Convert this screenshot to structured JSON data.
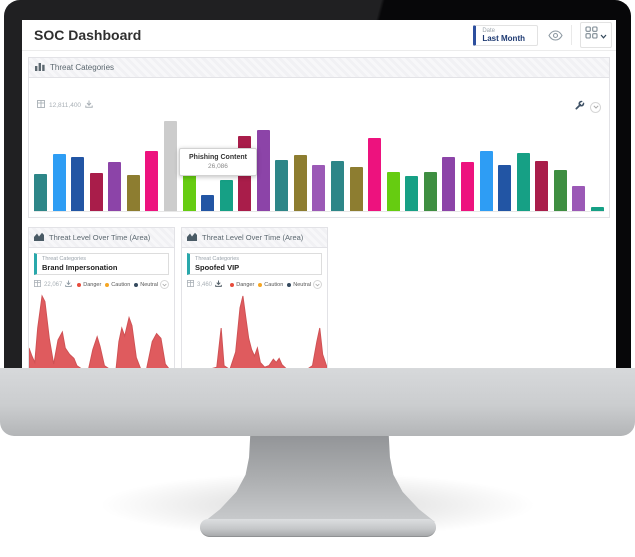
{
  "app": {
    "title": "SOC Dashboard"
  },
  "toolbar": {
    "date_label": "Date",
    "date_value": "Last Month"
  },
  "widgets": {
    "threat_categories": {
      "title": "Threat Categories",
      "stat_total": "12,811,400",
      "tooltip_label": "Phishing Content",
      "tooltip_value": "26,086"
    },
    "area_left": {
      "title": "Threat Level Over Time (Area)",
      "filter_label": "Threat Categories",
      "filter_value": "Brand Impersonation",
      "stat_total": "22,067"
    },
    "area_right": {
      "title": "Threat Level Over Time (Area)",
      "filter_label": "Threat Categories",
      "filter_value": "Spoofed VIP",
      "stat_total": "3,460"
    }
  },
  "legend": {
    "items": [
      {
        "label": "Danger",
        "color": "#e74c3c"
      },
      {
        "label": "Caution",
        "color": "#f5a623"
      },
      {
        "label": "Neutral",
        "color": "#34495e"
      }
    ]
  },
  "colors": {
    "accent_blue": "#2d4f9e",
    "accent_teal": "#29a8ab",
    "area_fill": "#df5b5e",
    "bar_highlight": "#cccccc"
  },
  "chart_data": [
    {
      "type": "bar",
      "title": "Threat Categories",
      "values": [
        10730,
        16530,
        15660,
        11020,
        14210,
        10440,
        17400,
        26086,
        16820,
        4640,
        8990,
        21750,
        23490,
        14790,
        16240,
        13340,
        14500,
        12760,
        21170,
        11310,
        10150,
        11310,
        15660,
        14210,
        17400,
        13340,
        16820,
        14500,
        11890,
        7250,
        1160
      ],
      "colors": [
        "#2d8688",
        "#2e9df4",
        "#2255a4",
        "#a91d4a",
        "#8c44a8",
        "#8d7d30",
        "#ed127e",
        "#cccccc",
        "#66cc11",
        "#2255a4",
        "#16a085",
        "#a91d4a",
        "#8c44a8",
        "#2d8688",
        "#8d7d30",
        "#9b59b6",
        "#2d8688",
        "#8d7d30",
        "#ed127e",
        "#66cc11",
        "#16a085",
        "#3e8e41",
        "#8c44a8",
        "#ed127e",
        "#2e9df4",
        "#2255a4",
        "#16a085",
        "#a91d4a",
        "#3e8e41",
        "#9b59b6",
        "#16a085"
      ],
      "highlight_index": 7,
      "highlight_label": "Phishing Content",
      "highlight_value": 26086,
      "legend_position": "none"
    },
    {
      "type": "area",
      "series_name": "Brand Impersonation",
      "color": "#df5b5e",
      "points": [
        [
          0,
          30
        ],
        [
          2,
          20
        ],
        [
          4,
          12
        ],
        [
          6,
          55
        ],
        [
          9,
          95
        ],
        [
          11,
          88
        ],
        [
          14,
          42
        ],
        [
          17,
          10
        ],
        [
          20,
          40
        ],
        [
          23,
          50
        ],
        [
          25,
          30
        ],
        [
          28,
          22
        ],
        [
          31,
          17
        ],
        [
          33,
          8
        ],
        [
          37,
          3
        ],
        [
          41,
          3
        ],
        [
          44,
          28
        ],
        [
          47,
          44
        ],
        [
          49,
          32
        ],
        [
          52,
          8
        ],
        [
          56,
          3
        ],
        [
          60,
          3
        ],
        [
          62,
          38
        ],
        [
          64,
          55
        ],
        [
          66,
          45
        ],
        [
          69,
          68
        ],
        [
          71,
          58
        ],
        [
          74,
          18
        ],
        [
          77,
          4
        ],
        [
          81,
          3
        ],
        [
          85,
          38
        ],
        [
          88,
          48
        ],
        [
          91,
          42
        ],
        [
          94,
          10
        ],
        [
          97,
          3
        ],
        [
          100,
          3
        ]
      ]
    },
    {
      "type": "area",
      "series_name": "Spoofed VIP",
      "color": "#df5b5e",
      "points": [
        [
          0,
          3
        ],
        [
          18,
          3
        ],
        [
          24,
          6
        ],
        [
          27,
          55
        ],
        [
          29,
          8
        ],
        [
          33,
          3
        ],
        [
          37,
          25
        ],
        [
          40,
          80
        ],
        [
          42,
          95
        ],
        [
          44,
          68
        ],
        [
          46,
          42
        ],
        [
          48,
          28
        ],
        [
          50,
          20
        ],
        [
          52,
          30
        ],
        [
          54,
          12
        ],
        [
          57,
          6
        ],
        [
          60,
          8
        ],
        [
          63,
          16
        ],
        [
          65,
          12
        ],
        [
          67,
          17
        ],
        [
          69,
          9
        ],
        [
          72,
          4
        ],
        [
          80,
          3
        ],
        [
          86,
          3
        ],
        [
          90,
          8
        ],
        [
          93,
          38
        ],
        [
          95,
          55
        ],
        [
          97,
          22
        ],
        [
          100,
          6
        ]
      ]
    }
  ]
}
